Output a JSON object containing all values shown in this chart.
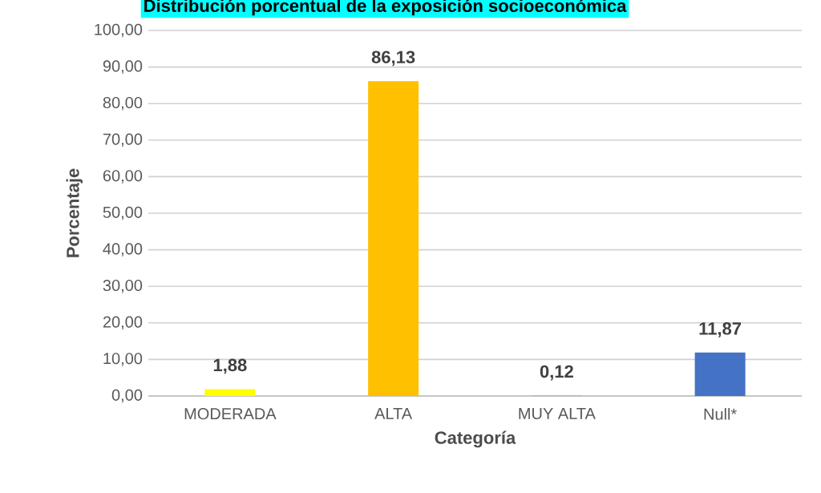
{
  "chart_data": {
    "type": "bar",
    "title": "Distribución porcentual de la exposición socioeconómica",
    "xlabel": "Categoría",
    "ylabel": "Porcentaje",
    "categories": [
      "MODERADA",
      "ALTA",
      "MUY ALTA",
      "Null*"
    ],
    "values": [
      1.88,
      86.13,
      0.12,
      11.87
    ],
    "colors": [
      "#ffff00",
      "#ffc000",
      "#a5a5a5",
      "#4472c4"
    ],
    "value_labels": [
      "1,88",
      "86,13",
      "0,12",
      "11,87"
    ],
    "ylim": [
      0,
      100
    ],
    "yticks": [
      {
        "value": 0,
        "label": "0,00"
      },
      {
        "value": 10,
        "label": "10,00"
      },
      {
        "value": 20,
        "label": "20,00"
      },
      {
        "value": 30,
        "label": "30,00"
      },
      {
        "value": 40,
        "label": "40,00"
      },
      {
        "value": 50,
        "label": "50,00"
      },
      {
        "value": 60,
        "label": "60,00"
      },
      {
        "value": 70,
        "label": "70,00"
      },
      {
        "value": 80,
        "label": "80,00"
      },
      {
        "value": 90,
        "label": "90,00"
      },
      {
        "value": 100,
        "label": "100,00"
      }
    ],
    "grid": "y"
  }
}
